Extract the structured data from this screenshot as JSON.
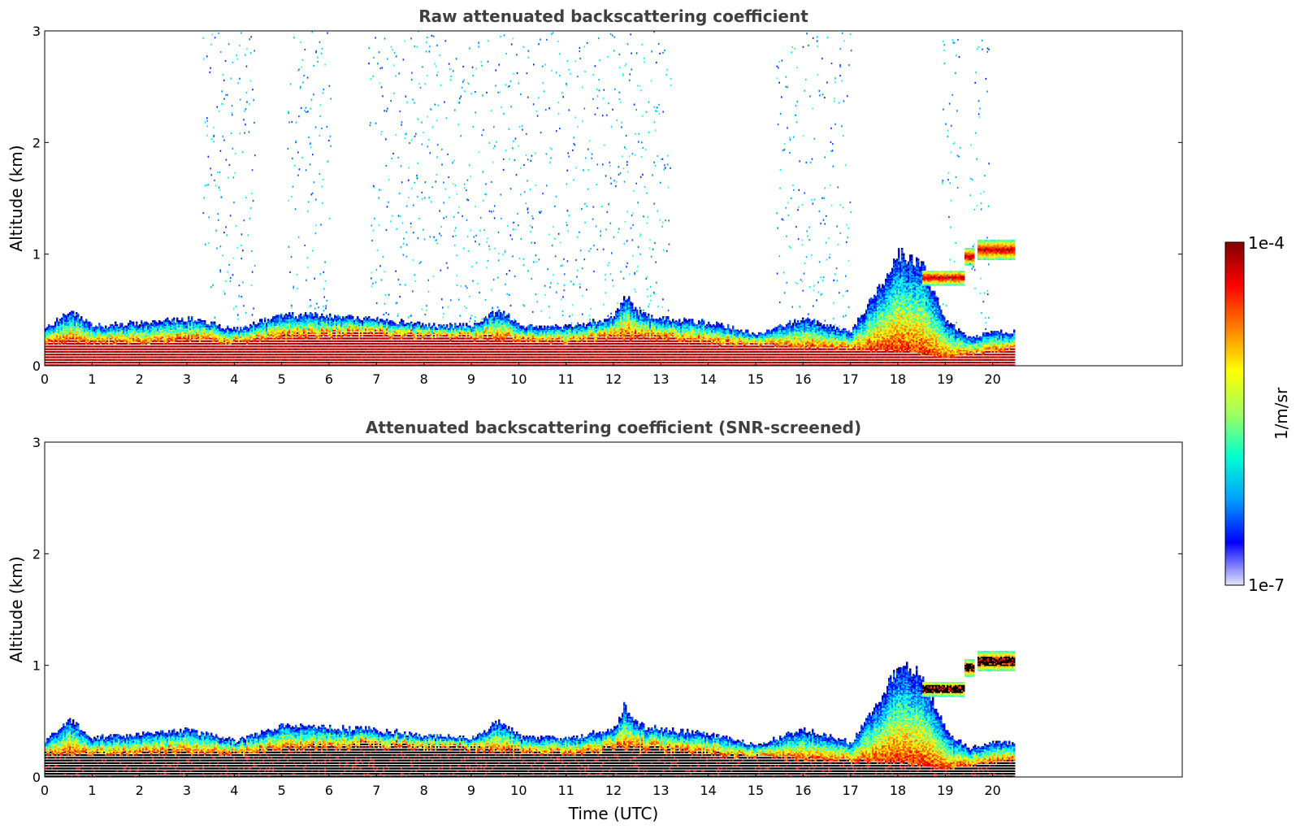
{
  "chart_data": [
    {
      "type": "heatmap",
      "title": "Raw attenuated backscattering coefficient",
      "xlabel": "",
      "ylabel": "Altitude (km)",
      "xlim": [
        0,
        24
      ],
      "ylim": [
        0,
        3
      ],
      "xticks": [
        "0",
        "1",
        "2",
        "3",
        "4",
        "5",
        "6",
        "7",
        "8",
        "9",
        "10",
        "11",
        "12",
        "13",
        "14",
        "15",
        "16",
        "17",
        "18",
        "19",
        "20"
      ],
      "yticks": [
        "0",
        "1",
        "2",
        "3"
      ],
      "data_end_hour": 20.45,
      "boundary_layer_top_km": [
        [
          0,
          0.32
        ],
        [
          0.5,
          0.5
        ],
        [
          1,
          0.35
        ],
        [
          2,
          0.38
        ],
        [
          3,
          0.42
        ],
        [
          4,
          0.32
        ],
        [
          5,
          0.45
        ],
        [
          6,
          0.44
        ],
        [
          7,
          0.42
        ],
        [
          8,
          0.36
        ],
        [
          9,
          0.35
        ],
        [
          9.6,
          0.5
        ],
        [
          10,
          0.35
        ],
        [
          11,
          0.34
        ],
        [
          12,
          0.42
        ],
        [
          12.2,
          0.62
        ],
        [
          12.6,
          0.45
        ],
        [
          13,
          0.42
        ],
        [
          14,
          0.38
        ],
        [
          15,
          0.28
        ],
        [
          16,
          0.42
        ],
        [
          17,
          0.3
        ],
        [
          17.6,
          0.7
        ],
        [
          18,
          1.0
        ],
        [
          18.5,
          0.9
        ],
        [
          19,
          0.4
        ],
        [
          19.5,
          0.25
        ],
        [
          20,
          0.3
        ],
        [
          20.45,
          0.3
        ]
      ],
      "strong_layer_top_km": [
        [
          0,
          0.2
        ],
        [
          1,
          0.2
        ],
        [
          2,
          0.2
        ],
        [
          3,
          0.22
        ],
        [
          4,
          0.2
        ],
        [
          5,
          0.25
        ],
        [
          6,
          0.26
        ],
        [
          7,
          0.28
        ],
        [
          8,
          0.25
        ],
        [
          9,
          0.25
        ],
        [
          10,
          0.22
        ],
        [
          11,
          0.2
        ],
        [
          12,
          0.25
        ],
        [
          13,
          0.24
        ],
        [
          14,
          0.2
        ],
        [
          15,
          0.18
        ],
        [
          16,
          0.15
        ],
        [
          17,
          0.14
        ],
        [
          18,
          0.12
        ],
        [
          19,
          0.06
        ],
        [
          20,
          0.12
        ],
        [
          20.45,
          0.14
        ]
      ],
      "elevated_cloud": [
        {
          "start": 18.5,
          "end": 19.4,
          "bottom_km": 0.72,
          "top_km": 0.85
        },
        {
          "start": 19.4,
          "end": 19.6,
          "bottom_km": 0.9,
          "top_km": 1.05
        },
        {
          "start": 19.65,
          "end": 20.45,
          "bottom_km": 0.95,
          "top_km": 1.12
        }
      ],
      "noise_regions_hours": [
        [
          3.3,
          4.4
        ],
        [
          5.1,
          6.0
        ],
        [
          6.8,
          13.2
        ],
        [
          15.4,
          17.0
        ],
        [
          18.9,
          19.3
        ],
        [
          19.5,
          19.9
        ]
      ]
    },
    {
      "type": "heatmap",
      "title": "Attenuated backscattering coefficient (SNR-screened)",
      "xlabel": "Time (UTC)",
      "ylabel": "Altitude (km)",
      "xlim": [
        0,
        24
      ],
      "ylim": [
        0,
        3
      ],
      "xticks": [
        "0",
        "1",
        "2",
        "3",
        "4",
        "5",
        "6",
        "7",
        "8",
        "9",
        "10",
        "11",
        "12",
        "13",
        "14",
        "15",
        "16",
        "17",
        "18",
        "19",
        "20"
      ],
      "yticks": [
        "0",
        "1",
        "2",
        "3"
      ],
      "data_end_hour": 20.45,
      "saturated_color": "#000000"
    }
  ],
  "colorbar": {
    "label": "1/m/sr",
    "min_label": "1e-7",
    "max_label": "1e-4",
    "colors": [
      "#e6e6fa",
      "#0000ff",
      "#00a0ff",
      "#00ffd0",
      "#a0ff60",
      "#ffff00",
      "#ff8000",
      "#ff0000",
      "#800000"
    ]
  }
}
